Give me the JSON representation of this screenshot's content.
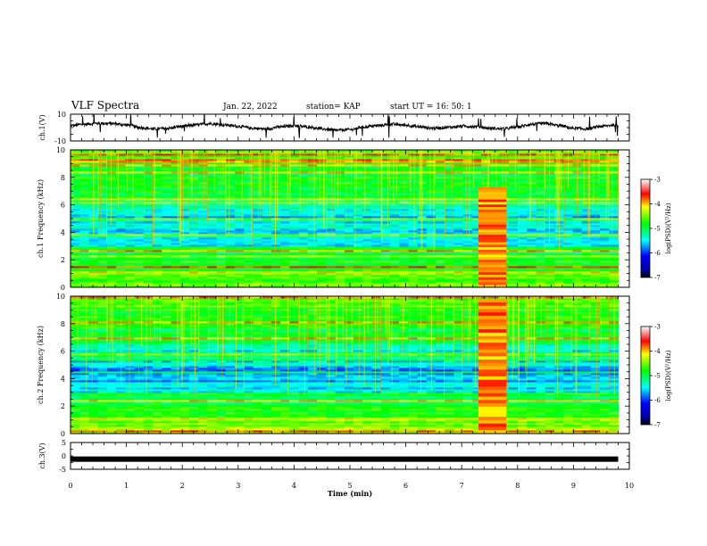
{
  "header": {
    "title": "VLF Spectra",
    "date": "Jan. 22, 2022",
    "station": "station= KAP",
    "start": "start  UT =   16: 50: 1"
  },
  "chart_data": [
    {
      "type": "line",
      "panel": "ch1-waveform",
      "ylabel": "ch.1(V)",
      "xlim": [
        0,
        10
      ],
      "ylim": [
        -10,
        10
      ],
      "yticks": [
        "10",
        "-10"
      ],
      "description_series": "Low-frequency wave oscillating roughly between -2 and 3.5 V over 0–9.8 min",
      "x": [
        0,
        0.25,
        0.5,
        0.75,
        1.0,
        1.25,
        1.5,
        1.75,
        2.0,
        2.25,
        2.5,
        2.75,
        3.0,
        3.25,
        3.5,
        3.75,
        4.0,
        4.25,
        4.5,
        4.75,
        5.0,
        5.25,
        5.5,
        5.75,
        6.0,
        6.25,
        6.5,
        6.75,
        7.0,
        7.25,
        7.5,
        7.75,
        8.0,
        8.25,
        8.5,
        8.75,
        9.0,
        9.25,
        9.5,
        9.75,
        9.8
      ],
      "y": [
        1.5,
        2.5,
        3.2,
        3.0,
        2.0,
        0.0,
        -1.0,
        -0.5,
        1.0,
        2.0,
        3.0,
        2.0,
        1.0,
        -0.5,
        -1.0,
        0.5,
        1.5,
        0.5,
        -1.0,
        -2.0,
        -1.5,
        0.5,
        1.5,
        2.5,
        1.8,
        0.5,
        -0.5,
        0.2,
        1.0,
        0.8,
        -0.5,
        -1.0,
        0.5,
        2.5,
        3.0,
        1.5,
        -0.5,
        -1.0,
        1.0,
        2.0,
        1.5
      ]
    },
    {
      "type": "heatmap",
      "panel": "ch1-spectrogram",
      "ylabel": "ch.1 Frequency  (kHz)",
      "xlim": [
        0,
        10
      ],
      "ylim": [
        0,
        10
      ],
      "yticks": [
        0,
        2,
        4,
        6,
        8,
        10
      ],
      "data_x_end": 9.8,
      "bursts": [
        {
          "x": [
            7.3,
            7.8
          ],
          "ymax": 7.3,
          "note": "broadband enhanced emission"
        }
      ],
      "colorbar": {
        "label": "log(PSD)(V²/Hz)",
        "ticks": [
          "-3",
          "-4",
          "-5",
          "-6",
          "-7"
        ],
        "range": [
          -7,
          -3
        ]
      }
    },
    {
      "type": "heatmap",
      "panel": "ch2-spectrogram",
      "ylabel": "ch.2 Frequency  (kHz)",
      "xlim": [
        0,
        10
      ],
      "ylim": [
        0,
        10
      ],
      "yticks": [
        0,
        2,
        4,
        6,
        8,
        10
      ],
      "data_x_end": 9.8,
      "bursts": [
        {
          "x": [
            7.3,
            7.8
          ],
          "ymax": 9.8,
          "note": "broadband enhanced emission"
        }
      ],
      "colorbar": {
        "label": "log(PSD)(V²/Hz)",
        "ticks": [
          "-3",
          "-4",
          "-5",
          "-6",
          "-7"
        ],
        "range": [
          -7,
          -3
        ]
      }
    },
    {
      "type": "line",
      "panel": "ch3-waveform",
      "ylabel": "ch.3(V)",
      "xlim": [
        0,
        10
      ],
      "ylim": [
        -5,
        5
      ],
      "yticks": [
        "5",
        "0",
        "-5"
      ],
      "x": [
        0,
        9.8
      ],
      "y": [
        -1.2,
        -1.2
      ]
    }
  ],
  "xaxis": {
    "label": "Time  (min)",
    "ticks": [
      "0",
      "1",
      "2",
      "3",
      "4",
      "5",
      "6",
      "7",
      "8",
      "9",
      "10"
    ]
  },
  "colors": {
    "ink": "#000000",
    "deep_blue": "#0000ff",
    "cyan": "#00ffff",
    "green": "#33dd33",
    "yellow": "#ffff00",
    "red": "#ff0000"
  }
}
